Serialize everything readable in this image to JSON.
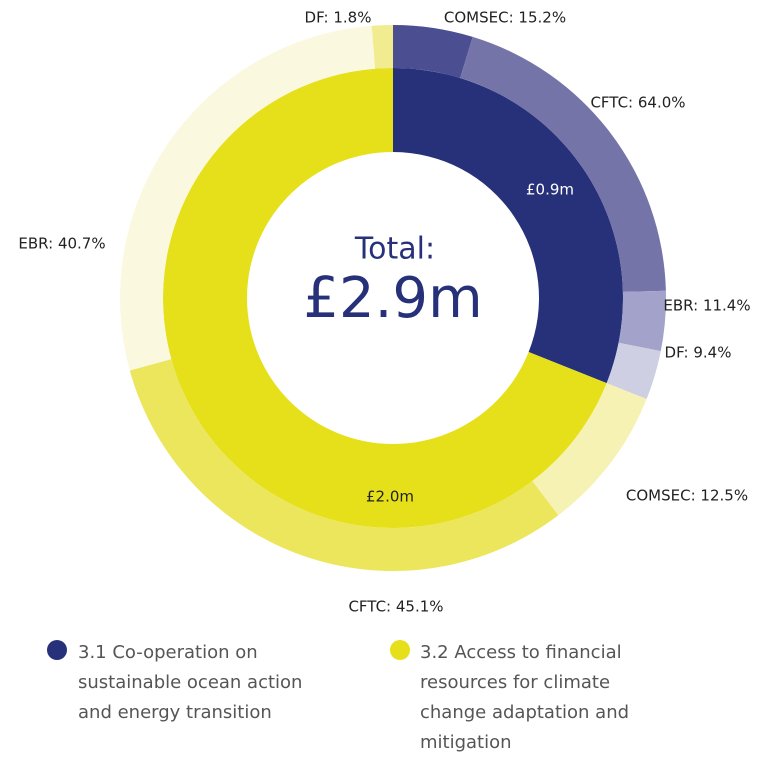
{
  "chart_data": {
    "type": "sunburst",
    "center_title": "Total:",
    "center_value": "£2.9m",
    "series": [
      {
        "name": "3.1 Co-operation on sustainable ocean action and energy transition",
        "color": "#27317a",
        "value": 0.9,
        "value_label": "£0.9m",
        "children": [
          {
            "label": "COMSEC: 15.2%",
            "value": 15.2,
            "color": "#4b4f92"
          },
          {
            "label": "CFTC: 64.0%",
            "value": 64.0,
            "color": "#7574a9"
          },
          {
            "label": "EBR: 11.4%",
            "value": 11.4,
            "color": "#a3a2cb"
          },
          {
            "label": "DF: 9.4%",
            "value": 9.4,
            "color": "#cfcfe4"
          }
        ]
      },
      {
        "name": "3.2 Access to financial resources for climate change adaptation and mitigation",
        "color": "#e6e01a",
        "value": 2.0,
        "value_label": "£2.0m",
        "children": [
          {
            "label": "COMSEC: 12.5%",
            "value": 12.5,
            "color": "#f6f2b3"
          },
          {
            "label": "CFTC: 45.1%",
            "value": 45.1,
            "color": "#ece65c"
          },
          {
            "label": "EBR: 40.7%",
            "value": 40.7,
            "color": "#fbf8e0"
          },
          {
            "label": "DF: 1.8%",
            "value": 1.8,
            "color": "#f1ec90"
          }
        ]
      }
    ]
  }
}
